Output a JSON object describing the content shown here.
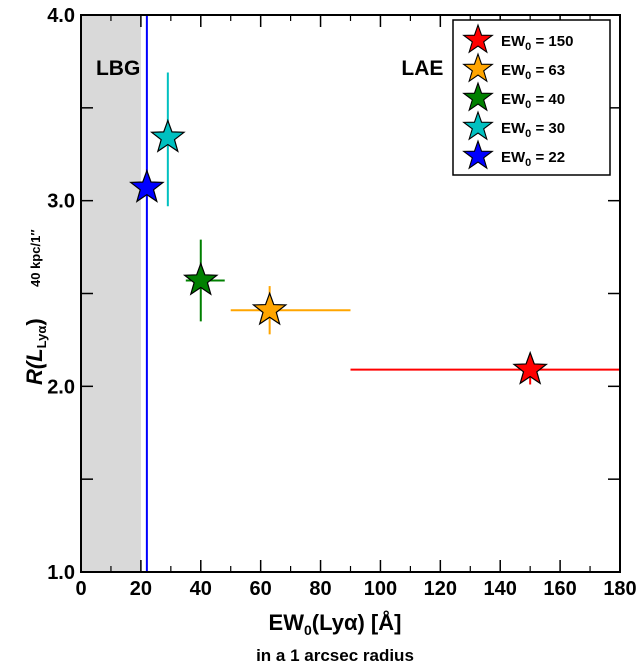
{
  "chart_data": {
    "type": "scatter",
    "xlabel": {
      "main": "EW",
      "sub": "0",
      "tail": "(Lyα) [Å]"
    },
    "xlabel_note": "in a 1 arcsec radius",
    "ylabel": {
      "main": "R(",
      "italic": "L",
      "sub": "Lyα",
      "close": ")",
      "subscript": "40 kpc/1″"
    },
    "xlim": [
      0,
      180
    ],
    "ylim": [
      1.0,
      4.0
    ],
    "x_ticks": [
      "0",
      "20",
      "40",
      "60",
      "80",
      "100",
      "120",
      "140",
      "160",
      "180"
    ],
    "y_ticks": [
      "1.0",
      "2.0",
      "3.0",
      "4.0"
    ],
    "y_tick_values": [
      1.0,
      2.0,
      3.0,
      4.0
    ],
    "y_minor_tick_values": [
      1.5,
      2.5,
      3.5
    ],
    "shaded_region": {
      "x_range": [
        0,
        20
      ],
      "color": "#d9d9d9"
    },
    "vertical_line": {
      "x": 22,
      "color": "#0000ff"
    },
    "region_labels": [
      {
        "text": "LBG",
        "x": 5,
        "y": 3.72
      },
      {
        "text": "LAE",
        "x": 107,
        "y": 3.72
      }
    ],
    "series": [
      {
        "name": "EW₀ = 150",
        "label_main": "EW",
        "label_sub": "0",
        "label_tail": " = 150",
        "color": "#ff0000",
        "x": 150,
        "y": 2.09,
        "xerr": [
          60,
          30
        ],
        "yerr": [
          0.08,
          0.0
        ]
      },
      {
        "name": "EW₀ = 63",
        "label_main": "EW",
        "label_sub": "0",
        "label_tail": " = 63",
        "color": "#ffa500",
        "x": 63,
        "y": 2.41,
        "xerr": [
          13,
          27
        ],
        "yerr": [
          0.13,
          0.13
        ]
      },
      {
        "name": "EW₀ = 40",
        "label_main": "EW",
        "label_sub": "0",
        "label_tail": " = 40",
        "color": "#008000",
        "x": 40,
        "y": 2.57,
        "xerr": [
          5,
          8
        ],
        "yerr": [
          0.22,
          0.22
        ]
      },
      {
        "name": "EW₀ = 30",
        "label_main": "EW",
        "label_sub": "0",
        "label_tail": " = 30",
        "color": "#00c0c0",
        "x": 29,
        "y": 3.34,
        "xerr": [
          0,
          0
        ],
        "yerr": [
          0.37,
          0.35
        ]
      },
      {
        "name": "EW₀ = 22",
        "label_main": "EW",
        "label_sub": "0",
        "label_tail": " = 22",
        "color": "#0000ff",
        "x": 22,
        "y": 3.07,
        "xerr": [
          0,
          0
        ],
        "yerr": [
          0,
          0
        ]
      }
    ],
    "legend_position": "top-right",
    "grid": false
  }
}
